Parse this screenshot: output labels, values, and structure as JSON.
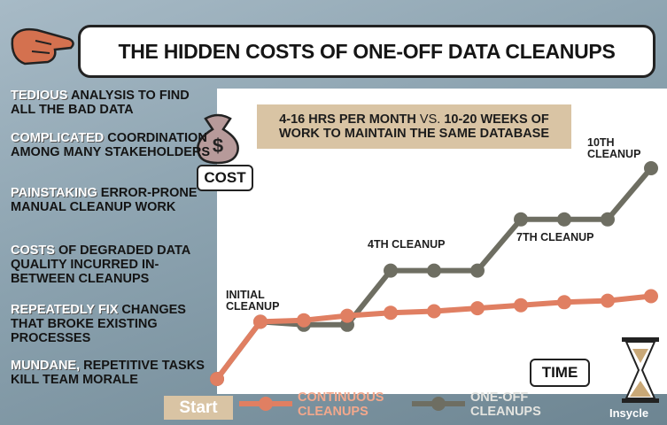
{
  "chart_data": {
    "type": "line",
    "title": "THE HIDDEN COSTS OF ONE-OFF DATA CLEANUPS",
    "categories": [
      "Start",
      "INITIAL CLEANUP",
      null,
      null,
      "4TH CLEANUP",
      null,
      null,
      "7TH CLEANUP",
      null,
      null,
      "10TH CLEANUP"
    ],
    "series": [
      {
        "name": "CONTINUOUS CLEANUPS",
        "color": "#e07f62",
        "values": [
          5,
          24,
          24.5,
          26,
          27,
          27.5,
          28.5,
          29.5,
          30.5,
          31,
          32.5
        ]
      },
      {
        "name": "ONE-OFF CLEANUPS",
        "color": "#6e6e62",
        "values": [
          5,
          24,
          23,
          23,
          41,
          41,
          41,
          58,
          58,
          58,
          75
        ]
      }
    ],
    "ylim": [
      0,
      100
    ],
    "y_label": "COST",
    "x_label": "TIME",
    "callout": [
      "4-16 HRS PER MONTH",
      " VS. ",
      "10-20 WEEKS",
      " OF WORK TO MAINTAIN THE SAME DATABASE"
    ],
    "notes": [
      {
        "key": "TEDIOUS",
        "text": " ANALYSIS TO FIND ALL THE BAD DATA"
      },
      {
        "key": "COMPLICATED",
        "text": " COORDINATION AMONG MANY STAKEHOLDERS"
      },
      {
        "key": "PAINSTAKING",
        "text": " ERROR-PRONE MANUAL CLEANUP WORK"
      },
      {
        "key": "COSTS",
        "text": " OF DEGRADED DATA QUALITY INCURRED IN-BETWEEN CLEANUPS"
      },
      {
        "key": "REPEATEDLY FIX",
        "text": " CHANGES THAT BROKE EXISTING PROCESSES"
      },
      {
        "key": "MUNDANE,",
        "text": " REPETITIVE TASKS KILL TEAM MORALE"
      }
    ],
    "brand": "Insycle"
  }
}
